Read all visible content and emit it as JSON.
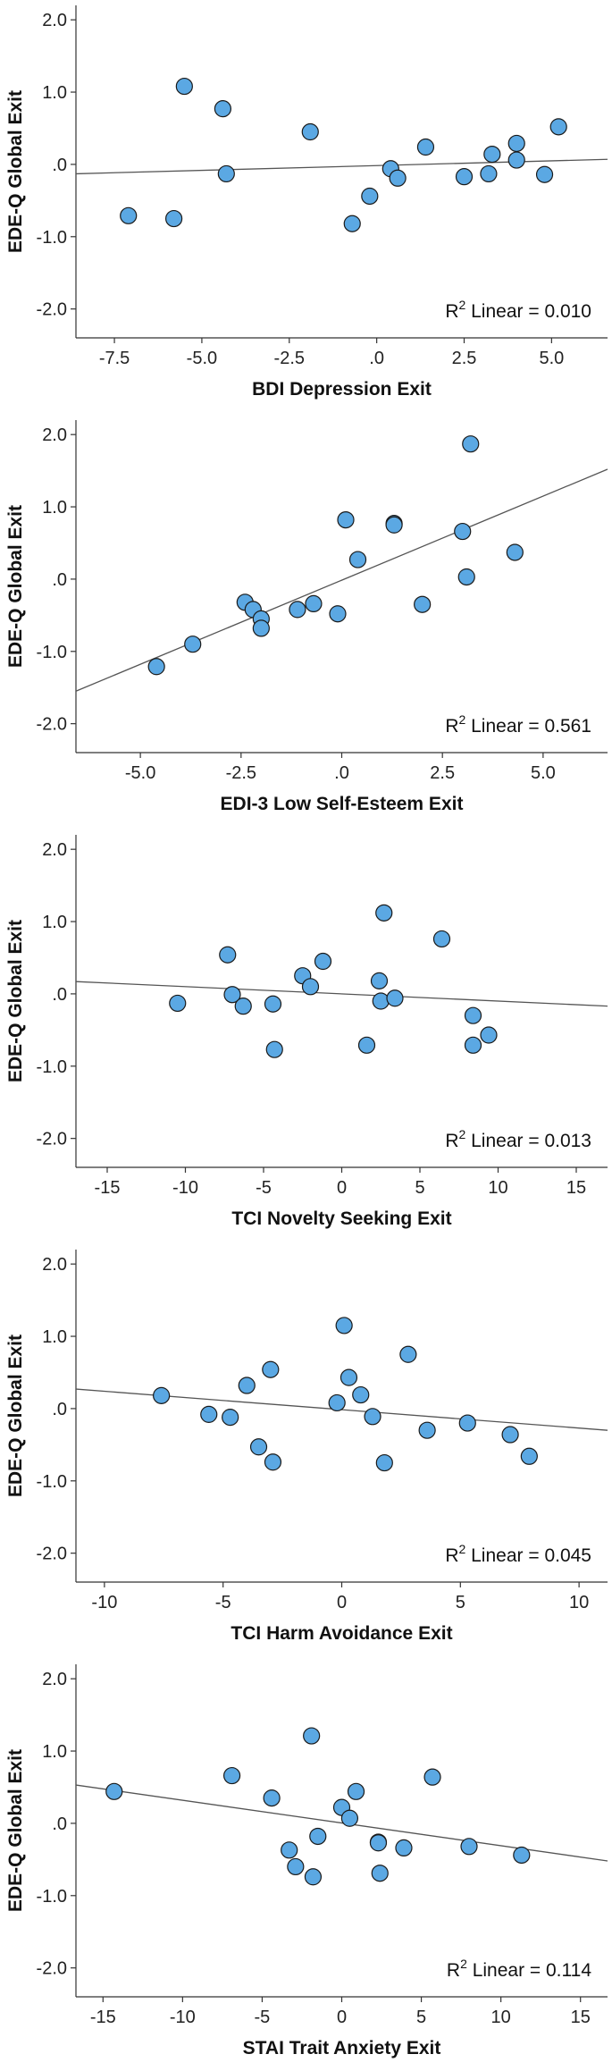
{
  "chart_data": [
    {
      "type": "scatter",
      "xlabel": "BDI Depression Exit",
      "ylabel": "EDE-Q Global Exit",
      "r2_label": "Linear = 0.010",
      "xlim": [
        -8.6,
        6.6
      ],
      "ylim": [
        -2.4,
        2.2
      ],
      "xticks": [
        -7.5,
        -5.0,
        -2.5,
        0,
        2.5,
        5.0
      ],
      "xtick_labels": [
        "-7.5",
        "-5.0",
        "-2.5",
        ".0",
        "2.5",
        "5.0"
      ],
      "yticks": [
        2,
        1,
        0,
        -1,
        -2
      ],
      "ytick_labels": [
        "2.0",
        "1.0",
        ".0",
        "-1.0",
        "-2.0"
      ],
      "line": {
        "x": [
          -8.6,
          6.6
        ],
        "y": [
          -0.13,
          0.07
        ]
      },
      "points": [
        {
          "x": -7.1,
          "y": -0.71
        },
        {
          "x": -5.8,
          "y": -0.75
        },
        {
          "x": -5.5,
          "y": 1.08
        },
        {
          "x": -4.4,
          "y": 0.77
        },
        {
          "x": -4.3,
          "y": -0.13
        },
        {
          "x": -1.9,
          "y": 0.45
        },
        {
          "x": -0.7,
          "y": -0.82
        },
        {
          "x": -0.2,
          "y": -0.44
        },
        {
          "x": 0.4,
          "y": -0.06
        },
        {
          "x": 0.6,
          "y": -0.19
        },
        {
          "x": 1.4,
          "y": 0.24
        },
        {
          "x": 2.5,
          "y": -0.17
        },
        {
          "x": 3.2,
          "y": -0.13
        },
        {
          "x": 3.3,
          "y": 0.14
        },
        {
          "x": 4.0,
          "y": 0.06
        },
        {
          "x": 4.0,
          "y": 0.29
        },
        {
          "x": 4.8,
          "y": -0.14
        },
        {
          "x": 5.2,
          "y": 0.52
        }
      ]
    },
    {
      "type": "scatter",
      "xlabel": "EDI-3 Low Self-Esteem Exit",
      "ylabel": "EDE-Q Global Exit",
      "r2_label": "Linear = 0.561",
      "xlim": [
        -6.6,
        6.6
      ],
      "ylim": [
        -2.4,
        2.2
      ],
      "xticks": [
        -5.0,
        -2.5,
        0,
        2.5,
        5.0
      ],
      "xtick_labels": [
        "-5.0",
        "-2.5",
        ".0",
        "2.5",
        "5.0"
      ],
      "yticks": [
        2,
        1,
        0,
        -1,
        -2
      ],
      "ytick_labels": [
        "2.0",
        "1.0",
        ".0",
        "-1.0",
        "-2.0"
      ],
      "line": {
        "x": [
          -6.6,
          6.6
        ],
        "y": [
          -1.55,
          1.52
        ]
      },
      "points": [
        {
          "x": -4.6,
          "y": -1.21
        },
        {
          "x": -3.7,
          "y": -0.9
        },
        {
          "x": -2.4,
          "y": -0.32
        },
        {
          "x": -2.2,
          "y": -0.42
        },
        {
          "x": -2.0,
          "y": -0.55
        },
        {
          "x": -2.0,
          "y": -0.68
        },
        {
          "x": -1.1,
          "y": -0.42
        },
        {
          "x": -0.7,
          "y": -0.34
        },
        {
          "x": -0.1,
          "y": -0.48
        },
        {
          "x": 0.1,
          "y": 0.82
        },
        {
          "x": 0.4,
          "y": 0.27
        },
        {
          "x": 1.3,
          "y": 0.77
        },
        {
          "x": 1.3,
          "y": 0.75
        },
        {
          "x": 2.0,
          "y": -0.35
        },
        {
          "x": 3.0,
          "y": 0.66
        },
        {
          "x": 3.1,
          "y": 0.03
        },
        {
          "x": 3.2,
          "y": 1.87
        },
        {
          "x": 4.3,
          "y": 0.37
        }
      ]
    },
    {
      "type": "scatter",
      "xlabel": "TCI Novelty Seeking Exit",
      "ylabel": "EDE-Q Global Exit",
      "r2_label": "Linear = 0.013",
      "xlim": [
        -17,
        17
      ],
      "ylim": [
        -2.4,
        2.2
      ],
      "xticks": [
        -15,
        -10,
        -5,
        0,
        5,
        10,
        15
      ],
      "xtick_labels": [
        "-15",
        "-10",
        "-5",
        "0",
        "5",
        "10",
        "15"
      ],
      "yticks": [
        2,
        1,
        0,
        -1,
        -2
      ],
      "ytick_labels": [
        "2.0",
        "1.0",
        ".0",
        "-1.0",
        "-2.0"
      ],
      "line": {
        "x": [
          -17,
          17
        ],
        "y": [
          0.17,
          -0.17
        ]
      },
      "points": [
        {
          "x": -10.5,
          "y": -0.13
        },
        {
          "x": -7.3,
          "y": 0.54
        },
        {
          "x": -7.0,
          "y": -0.01
        },
        {
          "x": -6.3,
          "y": -0.17
        },
        {
          "x": -4.4,
          "y": -0.14
        },
        {
          "x": -4.3,
          "y": -0.77
        },
        {
          "x": -2.5,
          "y": 0.25
        },
        {
          "x": -2.0,
          "y": 0.1
        },
        {
          "x": -1.2,
          "y": 0.45
        },
        {
          "x": 1.6,
          "y": -0.71
        },
        {
          "x": 2.4,
          "y": 0.18
        },
        {
          "x": 2.5,
          "y": -0.1
        },
        {
          "x": 2.7,
          "y": 1.12
        },
        {
          "x": 3.4,
          "y": -0.06
        },
        {
          "x": 6.4,
          "y": 0.76
        },
        {
          "x": 8.4,
          "y": -0.3
        },
        {
          "x": 8.4,
          "y": -0.71
        },
        {
          "x": 9.4,
          "y": -0.57
        }
      ]
    },
    {
      "type": "scatter",
      "xlabel": "TCI Harm Avoidance Exit",
      "ylabel": "EDE-Q Global Exit",
      "r2_label": "Linear = 0.045",
      "xlim": [
        -11.2,
        11.2
      ],
      "ylim": [
        -2.4,
        2.2
      ],
      "xticks": [
        -10,
        -5,
        0,
        5,
        10
      ],
      "xtick_labels": [
        "-10",
        "-5",
        "0",
        "5",
        "10"
      ],
      "yticks": [
        2,
        1,
        0,
        -1,
        -2
      ],
      "ytick_labels": [
        "2.0",
        "1.0",
        ".0",
        "-1.0",
        "-2.0"
      ],
      "line": {
        "x": [
          -11.2,
          11.2
        ],
        "y": [
          0.27,
          -0.3
        ]
      },
      "points": [
        {
          "x": -7.6,
          "y": 0.18
        },
        {
          "x": -5.6,
          "y": -0.08
        },
        {
          "x": -4.7,
          "y": -0.12
        },
        {
          "x": -4.0,
          "y": 0.32
        },
        {
          "x": -3.5,
          "y": -0.53
        },
        {
          "x": -3.0,
          "y": 0.54
        },
        {
          "x": -2.9,
          "y": -0.74
        },
        {
          "x": -0.2,
          "y": 0.08
        },
        {
          "x": 0.1,
          "y": 1.15
        },
        {
          "x": 0.3,
          "y": 0.43
        },
        {
          "x": 0.8,
          "y": 0.19
        },
        {
          "x": 1.3,
          "y": -0.11
        },
        {
          "x": 1.8,
          "y": -0.75
        },
        {
          "x": 2.8,
          "y": 0.75
        },
        {
          "x": 3.6,
          "y": -0.3
        },
        {
          "x": 5.3,
          "y": -0.2
        },
        {
          "x": 7.1,
          "y": -0.36
        },
        {
          "x": 7.9,
          "y": -0.66
        }
      ]
    },
    {
      "type": "scatter",
      "xlabel": "STAI Trait Anxiety Exit",
      "ylabel": "EDE-Q Global Exit",
      "r2_label": "Linear = 0.114",
      "xlim": [
        -16.7,
        16.7
      ],
      "ylim": [
        -2.4,
        2.2
      ],
      "xticks": [
        -15,
        -10,
        -5,
        0,
        5,
        10,
        15
      ],
      "xtick_labels": [
        "-15",
        "-10",
        "-5",
        "0",
        "5",
        "10",
        "15"
      ],
      "yticks": [
        2,
        1,
        0,
        -1,
        -2
      ],
      "ytick_labels": [
        "2.0",
        "1.0",
        ".0",
        "-1.0",
        "-2.0"
      ],
      "line": {
        "x": [
          -16.7,
          16.7
        ],
        "y": [
          0.53,
          -0.52
        ]
      },
      "points": [
        {
          "x": -14.3,
          "y": 0.44
        },
        {
          "x": -6.9,
          "y": 0.66
        },
        {
          "x": -4.4,
          "y": 0.35
        },
        {
          "x": -3.3,
          "y": -0.37
        },
        {
          "x": -2.9,
          "y": -0.6
        },
        {
          "x": -1.9,
          "y": 1.21
        },
        {
          "x": -1.8,
          "y": -0.74
        },
        {
          "x": -1.5,
          "y": -0.18
        },
        {
          "x": 0.0,
          "y": 0.22
        },
        {
          "x": 0.5,
          "y": 0.07
        },
        {
          "x": 0.9,
          "y": 0.44
        },
        {
          "x": 2.3,
          "y": -0.26
        },
        {
          "x": 2.4,
          "y": -0.69
        },
        {
          "x": 2.3,
          "y": -0.27
        },
        {
          "x": 3.9,
          "y": -0.34
        },
        {
          "x": 5.7,
          "y": 0.64
        },
        {
          "x": 8.0,
          "y": -0.32
        },
        {
          "x": 11.3,
          "y": -0.44
        }
      ]
    }
  ]
}
